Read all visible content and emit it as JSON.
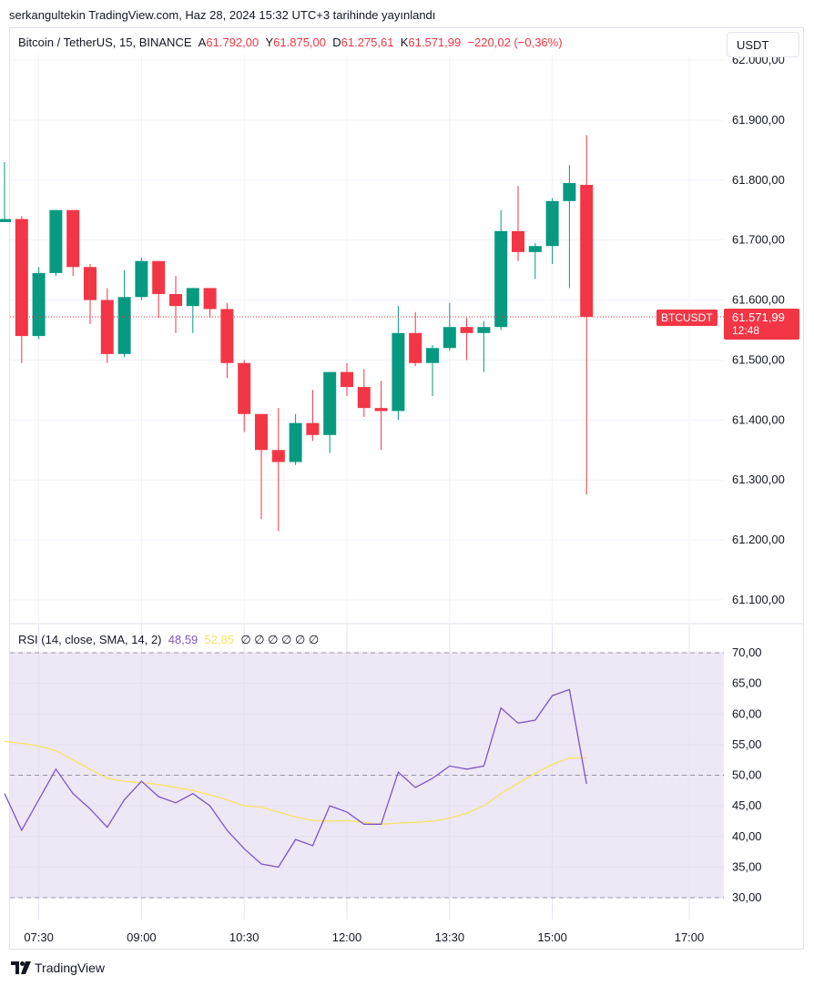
{
  "published": "serkangultekin TradingView.com, Haz 28, 2024 15:32 UTC+3 tarihinde yayınlandı",
  "legend": {
    "symbol": "Bitcoin / TetherUS, 15, BINANCE",
    "open_label": "A",
    "open": "61.792,00",
    "high_label": "Y",
    "high": "61.875,00",
    "low_label": "D",
    "low": "61.275,61",
    "close_label": "K",
    "close": "61.571,99",
    "change": "−220,02 (−0,36%)"
  },
  "currency_button": "USDT",
  "price_tag": {
    "symbol": "BTCUSDT",
    "price": "61.571,99",
    "countdown": "12:48"
  },
  "rsi_legend": {
    "label": "RSI (14, close, SMA, 14, 2)",
    "rsi_value": "48,59",
    "sma_value": "52,85",
    "empty_values": "∅ ∅ ∅ ∅ ∅ ∅"
  },
  "footer": {
    "brand": "TradingView"
  },
  "colors": {
    "up": "#089981",
    "down": "#f23645",
    "rsi": "#7e57c2",
    "rsi_sma": "#f7e466",
    "rsi_band": "#ede7f6",
    "last_price": "#f23645"
  },
  "chart_data": [
    {
      "type": "candlestick",
      "title": "Bitcoin / TetherUS, 15, BINANCE",
      "ylim": [
        61100,
        62000
      ],
      "y_ticks": [
        "61.100,00",
        "61.200,00",
        "61.300,00",
        "61.400,00",
        "61.500,00",
        "61.600,00",
        "61.700,00",
        "61.800,00",
        "61.900,00",
        "62.000,00"
      ],
      "y_tick_values": [
        61100,
        61200,
        61300,
        61400,
        61500,
        61600,
        61700,
        61800,
        61900,
        62000
      ],
      "last_price": 61571.99,
      "x_ticks": [
        {
          "label": "07:30",
          "time": "07:30"
        },
        {
          "label": "09:00",
          "time": "09:00"
        },
        {
          "label": "10:30",
          "time": "10:30"
        },
        {
          "label": "12:00",
          "time": "12:00"
        },
        {
          "label": "13:30",
          "time": "13:30"
        },
        {
          "label": "15:00",
          "time": "15:00"
        },
        {
          "label": "17:00",
          "time": "17:00"
        }
      ],
      "candles": [
        {
          "t": "07:00",
          "o": 61730,
          "h": 61830,
          "l": 61730,
          "c": 61735
        },
        {
          "t": "07:15",
          "o": 61735,
          "h": 61740,
          "l": 61495,
          "c": 61540
        },
        {
          "t": "07:30",
          "o": 61540,
          "h": 61655,
          "l": 61535,
          "c": 61645
        },
        {
          "t": "07:45",
          "o": 61645,
          "h": 61750,
          "l": 61640,
          "c": 61750
        },
        {
          "t": "08:00",
          "o": 61750,
          "h": 61750,
          "l": 61640,
          "c": 61655
        },
        {
          "t": "08:15",
          "o": 61655,
          "h": 61660,
          "l": 61560,
          "c": 61600
        },
        {
          "t": "08:30",
          "o": 61600,
          "h": 61620,
          "l": 61495,
          "c": 61510
        },
        {
          "t": "08:45",
          "o": 61510,
          "h": 61650,
          "l": 61505,
          "c": 61605
        },
        {
          "t": "09:00",
          "o": 61605,
          "h": 61670,
          "l": 61600,
          "c": 61665
        },
        {
          "t": "09:15",
          "o": 61665,
          "h": 61665,
          "l": 61570,
          "c": 61610
        },
        {
          "t": "09:30",
          "o": 61610,
          "h": 61640,
          "l": 61545,
          "c": 61590
        },
        {
          "t": "09:45",
          "o": 61590,
          "h": 61620,
          "l": 61545,
          "c": 61620
        },
        {
          "t": "10:00",
          "o": 61620,
          "h": 61620,
          "l": 61570,
          "c": 61585
        },
        {
          "t": "10:15",
          "o": 61585,
          "h": 61595,
          "l": 61470,
          "c": 61495
        },
        {
          "t": "10:30",
          "o": 61495,
          "h": 61500,
          "l": 61380,
          "c": 61410
        },
        {
          "t": "10:45",
          "o": 61410,
          "h": 61410,
          "l": 61235,
          "c": 61350
        },
        {
          "t": "11:00",
          "o": 61350,
          "h": 61420,
          "l": 61215,
          "c": 61330
        },
        {
          "t": "11:15",
          "o": 61330,
          "h": 61410,
          "l": 61325,
          "c": 61395
        },
        {
          "t": "11:30",
          "o": 61395,
          "h": 61450,
          "l": 61365,
          "c": 61375
        },
        {
          "t": "11:45",
          "o": 61375,
          "h": 61480,
          "l": 61345,
          "c": 61480
        },
        {
          "t": "12:00",
          "o": 61480,
          "h": 61495,
          "l": 61440,
          "c": 61455
        },
        {
          "t": "12:15",
          "o": 61455,
          "h": 61485,
          "l": 61405,
          "c": 61420
        },
        {
          "t": "12:30",
          "o": 61420,
          "h": 61465,
          "l": 61350,
          "c": 61415
        },
        {
          "t": "12:45",
          "o": 61415,
          "h": 61590,
          "l": 61400,
          "c": 61545
        },
        {
          "t": "13:00",
          "o": 61545,
          "h": 61580,
          "l": 61490,
          "c": 61495
        },
        {
          "t": "13:15",
          "o": 61495,
          "h": 61525,
          "l": 61440,
          "c": 61520
        },
        {
          "t": "13:30",
          "o": 61520,
          "h": 61595,
          "l": 61515,
          "c": 61555
        },
        {
          "t": "13:45",
          "o": 61555,
          "h": 61570,
          "l": 61500,
          "c": 61545
        },
        {
          "t": "14:00",
          "o": 61545,
          "h": 61565,
          "l": 61480,
          "c": 61555
        },
        {
          "t": "14:15",
          "o": 61555,
          "h": 61750,
          "l": 61550,
          "c": 61715
        },
        {
          "t": "14:30",
          "o": 61715,
          "h": 61790,
          "l": 61665,
          "c": 61680
        },
        {
          "t": "14:45",
          "o": 61680,
          "h": 61695,
          "l": 61635,
          "c": 61690
        },
        {
          "t": "15:00",
          "o": 61690,
          "h": 61770,
          "l": 61660,
          "c": 61765
        },
        {
          "t": "15:15",
          "o": 61765,
          "h": 61825,
          "l": 61620,
          "c": 61795
        },
        {
          "t": "15:30",
          "o": 61792,
          "h": 61875,
          "l": 61275.61,
          "c": 61571.99
        }
      ]
    },
    {
      "type": "line",
      "title": "RSI (14, close, SMA, 14, 2)",
      "ylim": [
        30,
        70
      ],
      "y_ticks": [
        "30,00",
        "35,00",
        "40,00",
        "45,00",
        "50,00",
        "55,00",
        "60,00",
        "65,00",
        "70,00"
      ],
      "y_tick_values": [
        30,
        35,
        40,
        45,
        50,
        55,
        60,
        65,
        70
      ],
      "bands": [
        30,
        50,
        70
      ],
      "series": [
        {
          "name": "RSI",
          "values": [
            47,
            41,
            46,
            51,
            47,
            44.5,
            41.5,
            46,
            49,
            46.5,
            45.5,
            47,
            45,
            41,
            38,
            35.5,
            35,
            39.5,
            38.5,
            45,
            44,
            42,
            42,
            50.5,
            48,
            49.5,
            51.5,
            51,
            51.5,
            61,
            58.5,
            59,
            63,
            64,
            48.59
          ]
        },
        {
          "name": "SMA",
          "values": [
            55.5,
            55.2,
            54.8,
            54,
            52.5,
            51,
            49.5,
            49,
            48.8,
            48.5,
            48,
            47.5,
            46.8,
            46,
            45,
            44.8,
            44,
            43.2,
            42.6,
            42.5,
            42.6,
            42.3,
            42,
            42.2,
            42.3,
            42.5,
            43,
            43.8,
            45,
            47,
            48.7,
            50.3,
            51.8,
            52.8,
            52.85
          ]
        }
      ]
    }
  ]
}
